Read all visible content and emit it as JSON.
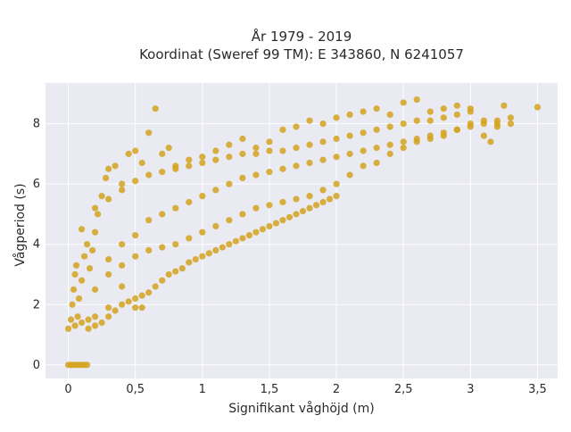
{
  "chart_data": {
    "type": "scatter",
    "title": "År 1979 - 2019",
    "subtitle": "Koordinat (Sweref 99 TM): E 343860, N 6241057",
    "xlabel": "Signifikant våghöjd (m)",
    "ylabel": "Vågperiod (s)",
    "xlim": [
      -0.17,
      3.65
    ],
    "ylim": [
      -0.45,
      9.35
    ],
    "x_ticks": [
      0,
      0.5,
      1,
      1.5,
      2,
      2.5,
      3,
      3.5
    ],
    "x_tick_labels": [
      "0",
      "0,5",
      "1",
      "1,5",
      "2",
      "2,5",
      "3",
      "3,5"
    ],
    "y_ticks": [
      0,
      2,
      4,
      6,
      8
    ],
    "y_tick_labels": [
      "0",
      "2",
      "4",
      "6",
      "8"
    ],
    "grid": true,
    "legend": "none",
    "plot_background": "#e9eaf2",
    "grid_color": "#ffffff",
    "marker_color": "#d4a31f",
    "series": [
      {
        "points": [
          [
            0.0,
            0.0
          ],
          [
            0.02,
            0.0
          ],
          [
            0.04,
            0.0
          ],
          [
            0.06,
            0.0
          ],
          [
            0.08,
            0.0
          ],
          [
            0.1,
            0.0
          ],
          [
            0.12,
            0.0
          ],
          [
            0.14,
            0.0
          ],
          [
            0.0,
            1.2
          ],
          [
            0.02,
            1.5
          ],
          [
            0.03,
            2.0
          ],
          [
            0.04,
            2.5
          ],
          [
            0.05,
            3.0
          ],
          [
            0.06,
            3.3
          ],
          [
            0.07,
            1.6
          ],
          [
            0.08,
            2.2
          ],
          [
            0.1,
            2.8
          ],
          [
            0.12,
            3.6
          ],
          [
            0.14,
            4.0
          ],
          [
            0.16,
            3.2
          ],
          [
            0.18,
            3.8
          ],
          [
            0.2,
            4.4
          ],
          [
            0.22,
            5.0
          ],
          [
            0.25,
            5.6
          ],
          [
            0.28,
            6.2
          ],
          [
            0.3,
            6.5
          ],
          [
            0.35,
            6.6
          ],
          [
            0.4,
            6.0
          ],
          [
            0.45,
            7.0
          ],
          [
            0.5,
            7.1
          ],
          [
            0.55,
            6.7
          ],
          [
            0.6,
            7.7
          ],
          [
            0.65,
            8.5
          ],
          [
            0.7,
            7.0
          ],
          [
            0.75,
            7.2
          ],
          [
            0.8,
            6.6
          ],
          [
            0.9,
            6.8
          ],
          [
            1.0,
            6.9
          ],
          [
            1.1,
            7.1
          ],
          [
            1.2,
            7.3
          ],
          [
            1.3,
            7.5
          ],
          [
            1.4,
            7.2
          ],
          [
            1.5,
            7.4
          ],
          [
            1.6,
            7.8
          ],
          [
            1.7,
            7.9
          ],
          [
            1.8,
            8.1
          ],
          [
            1.9,
            8.0
          ],
          [
            2.0,
            8.2
          ],
          [
            2.1,
            8.3
          ],
          [
            2.2,
            8.4
          ],
          [
            2.3,
            8.5
          ],
          [
            2.4,
            8.3
          ],
          [
            2.5,
            8.7
          ],
          [
            2.6,
            8.8
          ],
          [
            2.7,
            8.4
          ],
          [
            2.8,
            8.5
          ],
          [
            2.9,
            8.6
          ],
          [
            3.0,
            8.5
          ],
          [
            3.1,
            7.6
          ],
          [
            3.15,
            7.4
          ],
          [
            3.25,
            8.6
          ],
          [
            3.5,
            8.55
          ],
          [
            0.05,
            1.3
          ],
          [
            0.1,
            1.4
          ],
          [
            0.15,
            1.5
          ],
          [
            0.2,
            1.6
          ],
          [
            0.3,
            1.9
          ],
          [
            0.4,
            2.6
          ],
          [
            0.5,
            1.9
          ],
          [
            0.55,
            1.9
          ],
          [
            0.3,
            3.0
          ],
          [
            0.4,
            3.3
          ],
          [
            0.5,
            3.6
          ],
          [
            0.6,
            3.8
          ],
          [
            0.7,
            3.9
          ],
          [
            0.8,
            4.0
          ],
          [
            0.9,
            4.2
          ],
          [
            1.0,
            4.4
          ],
          [
            1.1,
            4.6
          ],
          [
            1.2,
            4.8
          ],
          [
            1.3,
            5.0
          ],
          [
            1.4,
            5.2
          ],
          [
            1.5,
            5.3
          ],
          [
            1.6,
            5.4
          ],
          [
            1.7,
            5.5
          ],
          [
            1.8,
            5.6
          ],
          [
            1.9,
            5.8
          ],
          [
            2.0,
            6.0
          ],
          [
            2.1,
            6.3
          ],
          [
            2.2,
            6.6
          ],
          [
            2.3,
            6.7
          ],
          [
            2.4,
            7.0
          ],
          [
            2.5,
            7.2
          ],
          [
            2.6,
            7.4
          ],
          [
            2.7,
            7.5
          ],
          [
            2.8,
            7.6
          ],
          [
            2.9,
            7.8
          ],
          [
            3.0,
            8.0
          ],
          [
            3.2,
            7.9
          ],
          [
            3.3,
            8.0
          ],
          [
            0.1,
            4.5
          ],
          [
            0.2,
            5.2
          ],
          [
            0.3,
            5.5
          ],
          [
            0.4,
            5.8
          ],
          [
            0.5,
            6.1
          ],
          [
            0.6,
            6.3
          ],
          [
            0.7,
            6.4
          ],
          [
            0.8,
            6.5
          ],
          [
            0.9,
            6.6
          ],
          [
            1.0,
            6.7
          ],
          [
            1.1,
            6.8
          ],
          [
            1.2,
            6.9
          ],
          [
            1.3,
            7.0
          ],
          [
            1.4,
            7.0
          ],
          [
            1.5,
            7.1
          ],
          [
            1.6,
            7.1
          ],
          [
            1.7,
            7.2
          ],
          [
            1.8,
            7.3
          ],
          [
            1.9,
            7.4
          ],
          [
            2.0,
            7.5
          ],
          [
            2.1,
            7.6
          ],
          [
            2.2,
            7.7
          ],
          [
            2.3,
            7.8
          ],
          [
            2.4,
            7.9
          ],
          [
            2.5,
            8.0
          ],
          [
            2.6,
            8.1
          ],
          [
            2.7,
            8.1
          ],
          [
            2.8,
            8.2
          ],
          [
            2.9,
            8.3
          ],
          [
            3.0,
            8.4
          ],
          [
            3.1,
            8.1
          ],
          [
            3.2,
            8.0
          ],
          [
            0.2,
            2.5
          ],
          [
            0.3,
            3.5
          ],
          [
            0.4,
            4.0
          ],
          [
            0.5,
            4.3
          ],
          [
            0.6,
            4.8
          ],
          [
            0.7,
            5.0
          ],
          [
            0.8,
            5.2
          ],
          [
            0.9,
            5.4
          ],
          [
            1.0,
            5.6
          ],
          [
            1.1,
            5.8
          ],
          [
            1.2,
            6.0
          ],
          [
            1.3,
            6.2
          ],
          [
            1.4,
            6.3
          ],
          [
            1.5,
            6.4
          ],
          [
            1.6,
            6.5
          ],
          [
            1.7,
            6.6
          ],
          [
            1.8,
            6.7
          ],
          [
            1.9,
            6.8
          ],
          [
            2.0,
            6.9
          ],
          [
            2.1,
            7.0
          ],
          [
            2.2,
            7.1
          ],
          [
            2.3,
            7.2
          ],
          [
            2.4,
            7.3
          ],
          [
            2.5,
            7.4
          ],
          [
            2.6,
            7.5
          ],
          [
            2.7,
            7.6
          ],
          [
            2.8,
            7.7
          ],
          [
            2.9,
            7.8
          ],
          [
            3.0,
            7.9
          ],
          [
            3.1,
            8.0
          ],
          [
            3.2,
            8.1
          ],
          [
            3.3,
            8.2
          ],
          [
            0.15,
            1.2
          ],
          [
            0.2,
            1.3
          ],
          [
            0.25,
            1.4
          ],
          [
            0.3,
            1.6
          ],
          [
            0.35,
            1.8
          ],
          [
            0.4,
            2.0
          ],
          [
            0.45,
            2.1
          ],
          [
            0.5,
            2.2
          ],
          [
            0.55,
            2.3
          ],
          [
            0.6,
            2.4
          ],
          [
            0.65,
            2.6
          ],
          [
            0.7,
            2.8
          ],
          [
            0.75,
            3.0
          ],
          [
            0.8,
            3.1
          ],
          [
            0.85,
            3.2
          ],
          [
            0.9,
            3.4
          ],
          [
            0.95,
            3.5
          ],
          [
            1.0,
            3.6
          ],
          [
            1.05,
            3.7
          ],
          [
            1.1,
            3.8
          ],
          [
            1.15,
            3.9
          ],
          [
            1.2,
            4.0
          ],
          [
            1.25,
            4.1
          ],
          [
            1.3,
            4.2
          ],
          [
            1.35,
            4.3
          ],
          [
            1.4,
            4.4
          ],
          [
            1.45,
            4.5
          ],
          [
            1.5,
            4.6
          ],
          [
            1.55,
            4.7
          ],
          [
            1.6,
            4.8
          ],
          [
            1.65,
            4.9
          ],
          [
            1.7,
            5.0
          ],
          [
            1.75,
            5.1
          ],
          [
            1.8,
            5.2
          ],
          [
            1.85,
            5.3
          ],
          [
            1.9,
            5.4
          ],
          [
            1.95,
            5.5
          ],
          [
            2.0,
            5.6
          ]
        ]
      }
    ]
  }
}
